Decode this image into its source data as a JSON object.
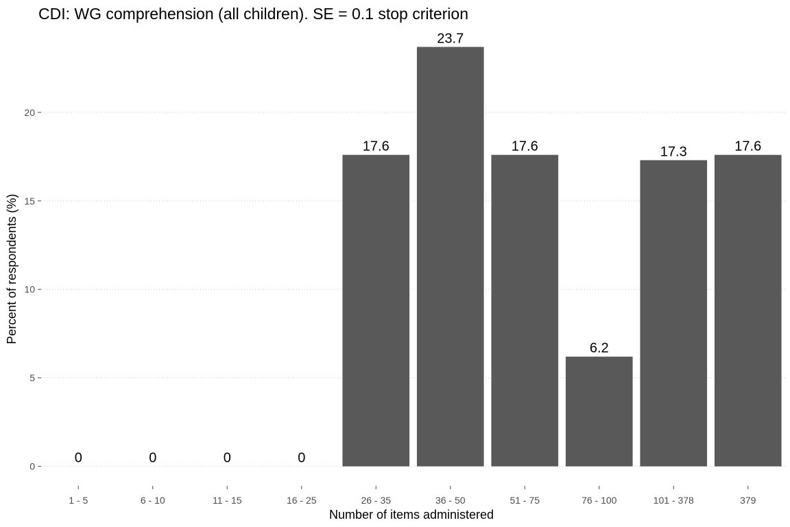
{
  "chart_data": {
    "type": "bar",
    "title": "CDI: WG comprehension (all children). SE = 0.1 stop criterion",
    "xlabel": "Number of items administered",
    "ylabel": "Percent of respondents (%)",
    "categories": [
      "1 - 5",
      "6 - 10",
      "11 - 15",
      "16 - 25",
      "26 - 35",
      "36 - 50",
      "51 - 75",
      "76 - 100",
      "101 - 378",
      "379"
    ],
    "values": [
      0,
      0,
      0,
      0,
      17.6,
      23.7,
      17.6,
      6.2,
      17.3,
      17.6
    ],
    "value_labels": [
      "0",
      "0",
      "0",
      "0",
      "17.6",
      "23.7",
      "17.6",
      "6.2",
      "17.3",
      "17.6"
    ],
    "y_ticks": [
      0,
      5,
      10,
      15,
      20
    ],
    "y_tick_labels": [
      "0",
      "5",
      "10",
      "15",
      "20"
    ],
    "ylim": [
      -1.1,
      24.8
    ],
    "grid": true,
    "bar_color": "#595959",
    "legend": "none"
  }
}
